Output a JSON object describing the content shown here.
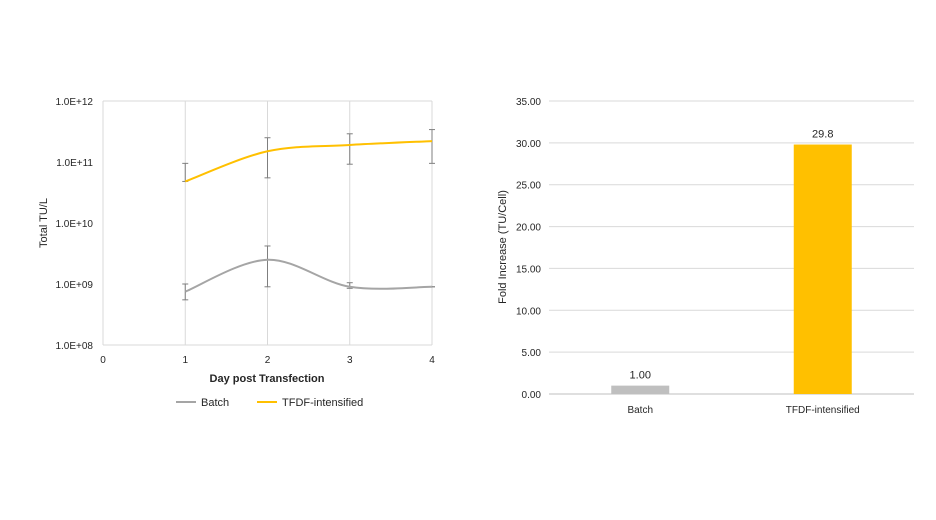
{
  "chart_data": [
    {
      "type": "line",
      "xlabel": "Day post Transfection",
      "ylabel": "Total TU/L",
      "yscale": "log",
      "xlim": [
        0,
        4
      ],
      "ylim": [
        100000000,
        1000000000000
      ],
      "xticks": [
        "0",
        "1",
        "2",
        "3",
        "4"
      ],
      "yticks": [
        "1.0E+08",
        "1.0E+09",
        "1.0E+10",
        "1.0E+11",
        "1.0E+12"
      ],
      "grid": "vertical",
      "legend": "bottom",
      "series": [
        {
          "name": "Batch",
          "color": "#a5a5a5",
          "x": [
            1,
            2,
            3,
            4
          ],
          "y": [
            750000000,
            2500000000,
            900000000,
            900000000
          ],
          "err_low": [
            550000000,
            900000000,
            850000000,
            900000000
          ],
          "err_high": [
            1000000000,
            4200000000,
            1050000000,
            900000000
          ]
        },
        {
          "name": "TFDF-intensified",
          "color": "#ffc000",
          "x": [
            1,
            2,
            3,
            4
          ],
          "y": [
            48000000000,
            150000000000,
            190000000000,
            220000000000
          ],
          "err_low": [
            48000000000,
            55000000000,
            92000000000,
            95000000000
          ],
          "err_high": [
            95000000000,
            250000000000,
            290000000000,
            340000000000
          ]
        }
      ]
    },
    {
      "type": "bar",
      "categories": [
        "Batch",
        "TFDF-intensified"
      ],
      "values": [
        1.0,
        29.8
      ],
      "data_labels": [
        "1.00",
        "29.8"
      ],
      "colors": [
        "#bfbfbf",
        "#ffc000"
      ],
      "ylabel": "Fold Increase (TU/Cell)",
      "ylim": [
        0,
        35
      ],
      "yticks": [
        "0.00",
        "5.00",
        "10.00",
        "15.00",
        "20.00",
        "25.00",
        "30.00",
        "35.00"
      ],
      "grid": "horizontal"
    }
  ]
}
